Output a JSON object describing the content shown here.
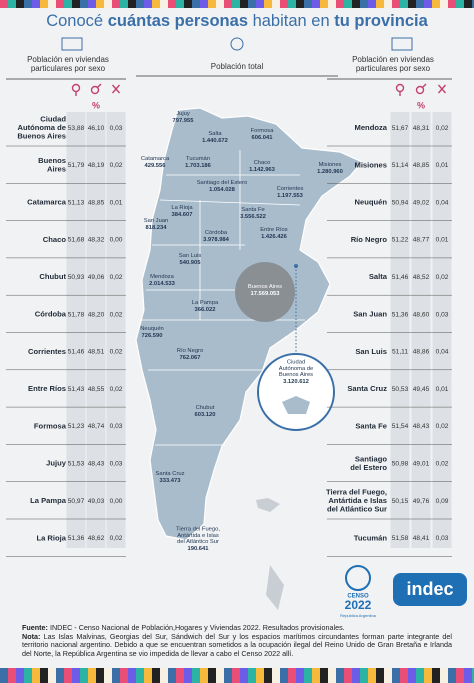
{
  "header": {
    "title_parts": [
      "Conocé ",
      "cuántas personas",
      " habitan en ",
      "tu provincia"
    ]
  },
  "left_table": {
    "heading": [
      "Población en viviendas",
      "particulares por sexo"
    ],
    "percent": "%",
    "rows": [
      {
        "name": [
          "Ciudad",
          "Autónoma de",
          "Buenos Aires"
        ],
        "female": "53,88",
        "male": "46,10",
        "other": "0,03"
      },
      {
        "name": [
          "Buenos",
          "Aires"
        ],
        "female": "51,79",
        "male": "48,19",
        "other": "0,02"
      },
      {
        "name": [
          "Catamarca"
        ],
        "female": "51,13",
        "male": "48,85",
        "other": "0,01"
      },
      {
        "name": [
          "Chaco"
        ],
        "female": "51,68",
        "male": "48,32",
        "other": "0,00"
      },
      {
        "name": [
          "Chubut"
        ],
        "female": "50,93",
        "male": "49,06",
        "other": "0,02"
      },
      {
        "name": [
          "Córdoba"
        ],
        "female": "51,78",
        "male": "48,20",
        "other": "0,02"
      },
      {
        "name": [
          "Corrientes"
        ],
        "female": "51,46",
        "male": "48,51",
        "other": "0,02"
      },
      {
        "name": [
          "Entre Ríos"
        ],
        "female": "51,43",
        "male": "48,55",
        "other": "0,02"
      },
      {
        "name": [
          "Formosa"
        ],
        "female": "51,23",
        "male": "48,74",
        "other": "0,03"
      },
      {
        "name": [
          "Jujuy"
        ],
        "female": "51,53",
        "male": "48,43",
        "other": "0,03"
      },
      {
        "name": [
          "La Pampa"
        ],
        "female": "50,97",
        "male": "49,03",
        "other": "0,00"
      },
      {
        "name": [
          "La Rioja"
        ],
        "female": "51,36",
        "male": "48,62",
        "other": "0,02"
      }
    ]
  },
  "right_table": {
    "heading": [
      "Población en viviendas",
      "particulares por sexo"
    ],
    "percent": "%",
    "rows": [
      {
        "name": [
          "Mendoza"
        ],
        "female": "51,67",
        "male": "48,31",
        "other": "0,02"
      },
      {
        "name": [
          "Misiones"
        ],
        "female": "51,14",
        "male": "48,85",
        "other": "0,01"
      },
      {
        "name": [
          "Neuquén"
        ],
        "female": "50,94",
        "male": "49,02",
        "other": "0,04"
      },
      {
        "name": [
          "Río Negro"
        ],
        "female": "51,22",
        "male": "48,77",
        "other": "0,01"
      },
      {
        "name": [
          "Salta"
        ],
        "female": "51,46",
        "male": "48,52",
        "other": "0,02"
      },
      {
        "name": [
          "San Juan"
        ],
        "female": "51,36",
        "male": "48,60",
        "other": "0,03"
      },
      {
        "name": [
          "San Luis"
        ],
        "female": "51,11",
        "male": "48,86",
        "other": "0,04"
      },
      {
        "name": [
          "Santa Cruz"
        ],
        "female": "50,53",
        "male": "49,45",
        "other": "0,01"
      },
      {
        "name": [
          "Santa Fe"
        ],
        "female": "51,54",
        "male": "48,43",
        "other": "0,02"
      },
      {
        "name": [
          "Santiago",
          "del Estero"
        ],
        "female": "50,98",
        "male": "49,01",
        "other": "0,02"
      },
      {
        "name": [
          "Tierra del Fuego,",
          "Antártida e Islas",
          "del Atlántico Sur"
        ],
        "female": "50,15",
        "male": "49,76",
        "other": "0,09"
      },
      {
        "name": [
          "Tucumán"
        ],
        "female": "51,58",
        "male": "48,41",
        "other": "0,03"
      }
    ]
  },
  "map": {
    "heading": "Población total",
    "labels": [
      {
        "name": [
          "Jujuy"
        ],
        "value": "797.955"
      },
      {
        "name": [
          "Salta"
        ],
        "value": "1.440.672"
      },
      {
        "name": [
          "Formosa"
        ],
        "value": "606.041"
      },
      {
        "name": [
          "Catamarca"
        ],
        "value": "429.556"
      },
      {
        "name": [
          "Tucumán"
        ],
        "value": "1.703.186"
      },
      {
        "name": [
          "Chaco"
        ],
        "value": "1.142.963"
      },
      {
        "name": [
          "Misiones"
        ],
        "value": "1.280.960"
      },
      {
        "name": [
          "Santiago del Estero"
        ],
        "value": "1.054.028"
      },
      {
        "name": [
          "Corrientes"
        ],
        "value": "1.197.553"
      },
      {
        "name": [
          "La Rioja"
        ],
        "value": "384.607"
      },
      {
        "name": [
          "Santa Fe"
        ],
        "value": "3.556.522"
      },
      {
        "name": [
          "San Juan"
        ],
        "value": "818.234"
      },
      {
        "name": [
          "Córdoba"
        ],
        "value": "3.978.984"
      },
      {
        "name": [
          "Entre Ríos"
        ],
        "value": "1.426.426"
      },
      {
        "name": [
          "San Luis"
        ],
        "value": "540.905"
      },
      {
        "name": [
          "Mendoza"
        ],
        "value": "2.014.533"
      },
      {
        "name": [
          "Buenos Aires"
        ],
        "value": "17.569.053"
      },
      {
        "name": [
          "La Pampa"
        ],
        "value": "366.022"
      },
      {
        "name": [
          "Neuquén"
        ],
        "value": "726.590"
      },
      {
        "name": [
          "Río Negro"
        ],
        "value": "762.067"
      },
      {
        "name": [
          "Ciudad",
          "Autónoma de",
          "Buenos Aires"
        ],
        "value": "3.120.612"
      },
      {
        "name": [
          "Chubut"
        ],
        "value": "603.120"
      },
      {
        "name": [
          "Santa Cruz"
        ],
        "value": "333.473"
      },
      {
        "name": [
          "Tierra del Fuego,",
          "Antártida e Islas",
          "del Atlántico Sur"
        ],
        "value": "190.641"
      }
    ]
  },
  "logos": {
    "censo": "CENSO",
    "censo_year": "2022",
    "censo_sub": "República Argentina",
    "indec": "indec"
  },
  "footer": {
    "source_label": "Fuente:",
    "source": " INDEC - Censo Nacional de Población,Hogares y Viviendas 2022. Resultados provisionales.",
    "note_label": "Nota:",
    "note": " Las Islas Malvinas, Georgias del Sur, Sándwich del Sur y los espacios marítimos circundantes forman parte integrante del territorio nacional argentino. Debido a que se encuentran sometidos a la ocupación ilegal del Reino Unido de Gran Bretaña e Irlanda del Norte, la República Argentina se vio impedida de llevar a cabo el Censo 2022 allí."
  }
}
